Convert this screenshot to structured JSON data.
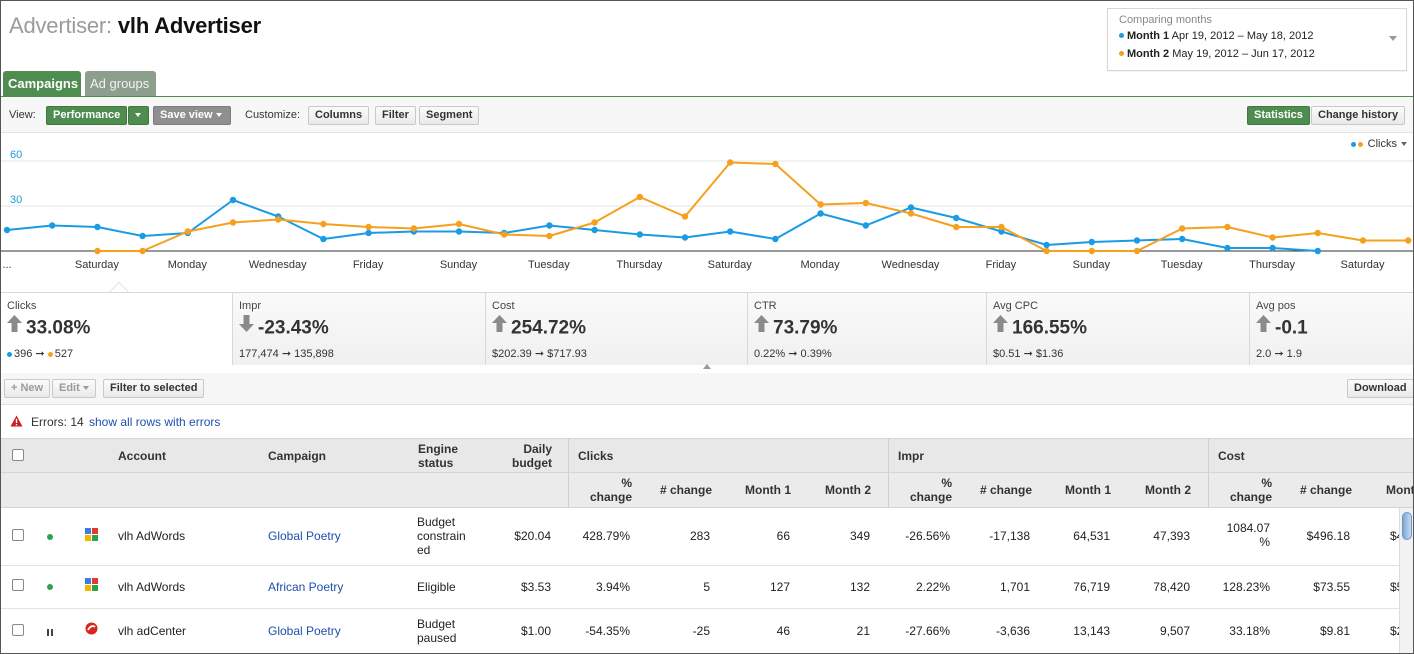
{
  "header": {
    "title_prefix": "Advertiser:",
    "title_name": "vlh Advertiser"
  },
  "comparing": {
    "label": "Comparing months",
    "month1_label": "Month 1",
    "month1_range": "Apr 19, 2012 – May 18, 2012",
    "month2_label": "Month 2",
    "month2_range": "May 19, 2012 – Jun 17, 2012"
  },
  "tabs": [
    {
      "label": "Campaigns",
      "active": true
    },
    {
      "label": "Ad groups",
      "active": false
    }
  ],
  "toolbar": {
    "view_label": "View:",
    "performance": "Performance",
    "save_view": "Save view",
    "customize_label": "Customize:",
    "columns": "Columns",
    "filter": "Filter",
    "segment": "Segment",
    "statistics": "Statistics",
    "change_history": "Change history"
  },
  "chart_data": {
    "type": "line",
    "ylabel": "",
    "ylim": [
      0,
      66
    ],
    "yticks": [
      "30",
      "60"
    ],
    "xlabels": [
      "...",
      "Saturday",
      "Monday",
      "Wednesday",
      "Friday",
      "Sunday",
      "Tuesday",
      "Thursday",
      "Saturday",
      "Monday",
      "Wednesday",
      "Friday",
      "Sunday",
      "Tuesday",
      "Thursday",
      "Saturday"
    ],
    "legend_label": "Clicks",
    "series": [
      {
        "color": "#1a9be3",
        "values": [
          14,
          17,
          16,
          10,
          12,
          34,
          23,
          8,
          12,
          13,
          13,
          12,
          17,
          14,
          11,
          9,
          13,
          8,
          25,
          17,
          29,
          22,
          13,
          4,
          6,
          7,
          8,
          2,
          2,
          0
        ]
      },
      {
        "color": "#f5a01e",
        "values": [
          null,
          null,
          0,
          0,
          13,
          19,
          21,
          18,
          16,
          15,
          18,
          11,
          10,
          19,
          36,
          23,
          59,
          58,
          31,
          32,
          25,
          16,
          16,
          0,
          0,
          0,
          15,
          16,
          9,
          12,
          7,
          7
        ]
      }
    ]
  },
  "metrics": [
    {
      "name": "Clicks",
      "dir": "up",
      "value": "33.08%",
      "from": "396",
      "to": "527",
      "dots": true
    },
    {
      "name": "Impr",
      "dir": "down",
      "value": "-23.43%",
      "from": "177,474",
      "to": "135,898",
      "dots": false
    },
    {
      "name": "Cost",
      "dir": "up",
      "value": "254.72%",
      "from": "$202.39",
      "to": "$717.93",
      "dots": false
    },
    {
      "name": "CTR",
      "dir": "up",
      "value": "73.79%",
      "from": "0.22%",
      "to": "0.39%",
      "dots": false
    },
    {
      "name": "Avg CPC",
      "dir": "up",
      "value": "166.55%",
      "from": "$0.51",
      "to": "$1.36",
      "dots": false
    },
    {
      "name": "Avg pos",
      "dir": "up",
      "value": "-0.1",
      "from": "2.0",
      "to": "1.9",
      "dots": false
    }
  ],
  "ttoolbar": {
    "new": "+ New",
    "edit": "Edit",
    "filter_selected": "Filter to selected",
    "download": "Download"
  },
  "errors": {
    "text": "Errors: 14",
    "link": "show all rows with errors"
  },
  "table": {
    "h_account": "Account",
    "h_campaign": "Campaign",
    "h_engine_1": "Engine",
    "h_engine_2": "status",
    "h_budget_1": "Daily",
    "h_budget_2": "budget",
    "h_clicks": "Clicks",
    "h_impr": "Impr",
    "h_cost": "Cost",
    "h_pct_1": "%",
    "h_pct_2": "change",
    "h_num_change": "# change",
    "h_month1": "Month 1",
    "h_month2": "Month 2",
    "h_mont_partial": "Mont",
    "rows": [
      {
        "status": "active",
        "engine_icon": "google-adwords-icon",
        "account": "vlh AdWords",
        "campaign": "Global Poetry",
        "engine_status": [
          "Budget",
          "constrain",
          "ed"
        ],
        "budget": "$20.04",
        "c_pct": "428.79%",
        "c_num": "283",
        "c_m1": "66",
        "c_m2": "349",
        "i_pct": "-26.56%",
        "i_num": "-17,138",
        "i_m1": "64,531",
        "i_m2": "47,393",
        "k_pct": [
          "1084.07",
          "%"
        ],
        "k_num": "$496.18",
        "k_m1": "$4"
      },
      {
        "status": "active",
        "engine_icon": "google-adwords-icon",
        "account": "vlh AdWords",
        "campaign": "African Poetry",
        "engine_status": [
          "Eligible"
        ],
        "budget": "$3.53",
        "c_pct": "3.94%",
        "c_num": "5",
        "c_m1": "127",
        "c_m2": "132",
        "i_pct": "2.22%",
        "i_num": "1,701",
        "i_m1": "76,719",
        "i_m2": "78,420",
        "k_pct": [
          "128.23%"
        ],
        "k_num": "$73.55",
        "k_m1": "$5"
      },
      {
        "status": "paused",
        "engine_icon": "adcenter-icon",
        "account": "vlh adCenter",
        "campaign": "Global Poetry",
        "engine_status": [
          "Budget",
          "paused"
        ],
        "budget": "$1.00",
        "c_pct": "-54.35%",
        "c_num": "-25",
        "c_m1": "46",
        "c_m2": "21",
        "i_pct": "-27.66%",
        "i_num": "-3,636",
        "i_m1": "13,143",
        "i_m2": "9,507",
        "k_pct": [
          "33.18%"
        ],
        "k_num": "$9.81",
        "k_m1": "$2"
      }
    ]
  }
}
